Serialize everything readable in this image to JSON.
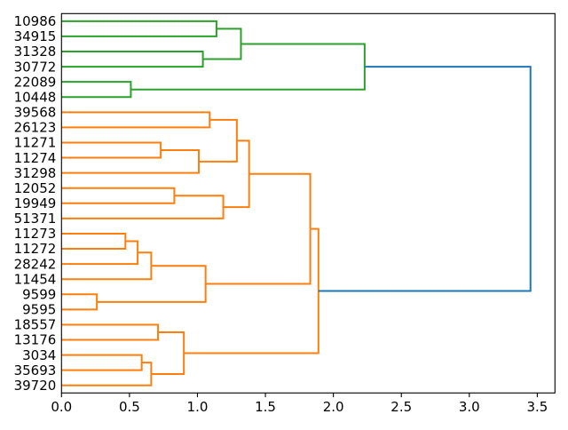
{
  "chart_data": {
    "type": "dendrogram",
    "orientation": "right",
    "description": "Hierarchical clustering dendrogram, leaf labels on left, merge distance on x axis",
    "xlim": [
      0,
      3.63
    ],
    "x_ticks": [
      0.0,
      0.5,
      1.0,
      1.5,
      2.0,
      2.5,
      3.0,
      3.5
    ],
    "x_tick_labels": [
      "0.0",
      "0.5",
      "1.0",
      "1.5",
      "2.0",
      "2.5",
      "3.0",
      "3.5"
    ],
    "grid": false,
    "leaf_labels": [
      "10986",
      "34915",
      "31328",
      "30772",
      "22089",
      "10448",
      "39568",
      "26123",
      "11271",
      "11274",
      "31298",
      "12052",
      "19949",
      "51371",
      "11273",
      "11272",
      "28242",
      "11454",
      "9599",
      "9595",
      "18557",
      "13176",
      "3034",
      "35693",
      "39720"
    ],
    "links": [
      {
        "a": "L0",
        "b": "L1",
        "h": 1.14,
        "color": "green"
      },
      {
        "a": "L2",
        "b": "L3",
        "h": 1.04,
        "color": "green"
      },
      {
        "a": "M0",
        "b": "M1",
        "h": 1.32,
        "color": "green"
      },
      {
        "a": "L4",
        "b": "L5",
        "h": 0.51,
        "color": "green"
      },
      {
        "a": "M2",
        "b": "M3",
        "h": 2.23,
        "color": "green"
      },
      {
        "a": "L6",
        "b": "L7",
        "h": 1.09,
        "color": "orange"
      },
      {
        "a": "L8",
        "b": "L9",
        "h": 0.73,
        "color": "orange"
      },
      {
        "a": "M6",
        "b": "L10",
        "h": 1.01,
        "color": "orange"
      },
      {
        "a": "M5",
        "b": "M7",
        "h": 1.29,
        "color": "orange"
      },
      {
        "a": "L11",
        "b": "L12",
        "h": 0.83,
        "color": "orange"
      },
      {
        "a": "M9",
        "b": "L13",
        "h": 1.19,
        "color": "orange"
      },
      {
        "a": "M8",
        "b": "M10",
        "h": 1.38,
        "color": "orange"
      },
      {
        "a": "L14",
        "b": "L15",
        "h": 0.47,
        "color": "orange"
      },
      {
        "a": "M12",
        "b": "L16",
        "h": 0.56,
        "color": "orange"
      },
      {
        "a": "M13",
        "b": "L17",
        "h": 0.66,
        "color": "orange"
      },
      {
        "a": "L18",
        "b": "L19",
        "h": 0.26,
        "color": "orange"
      },
      {
        "a": "M14",
        "b": "M15",
        "h": 1.06,
        "color": "orange"
      },
      {
        "a": "L20",
        "b": "L21",
        "h": 0.71,
        "color": "orange"
      },
      {
        "a": "L22",
        "b": "L23",
        "h": 0.59,
        "color": "orange"
      },
      {
        "a": "M18",
        "b": "L24",
        "h": 0.66,
        "color": "orange"
      },
      {
        "a": "M17",
        "b": "M19",
        "h": 0.9,
        "color": "orange"
      },
      {
        "a": "M11",
        "b": "M16",
        "h": 1.83,
        "color": "orange"
      },
      {
        "a": "M21",
        "b": "M20",
        "h": 1.89,
        "color": "orange"
      },
      {
        "a": "M4",
        "b": "M22",
        "h": 3.45,
        "color": "blue"
      }
    ],
    "colors": {
      "green": "#2ca02c",
      "orange": "#ff7f0e",
      "blue": "#1f77b4",
      "axis": "#000000",
      "background": "#ffffff"
    }
  }
}
